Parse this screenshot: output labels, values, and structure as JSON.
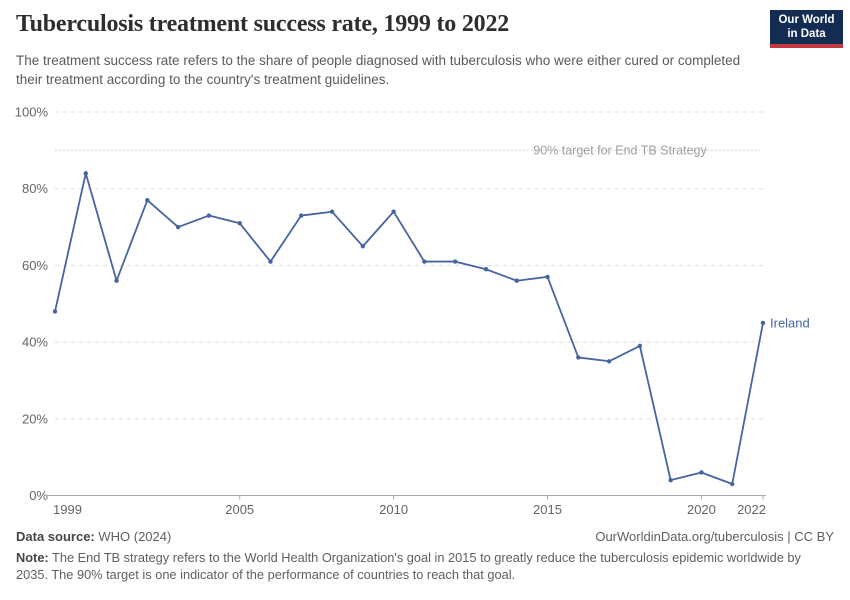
{
  "header": {
    "title": "Tuberculosis treatment success rate, 1999 to 2022",
    "subtitle": "The treatment success rate refers to the share of people diagnosed with tuberculosis who were either cured or completed their treatment according to the country's treatment guidelines.",
    "logo": {
      "line1": "Our World",
      "line2": "in Data"
    }
  },
  "chart_data": {
    "type": "line",
    "title": "Tuberculosis treatment success rate, 1999 to 2022",
    "xlabel": "",
    "ylabel": "",
    "xlim": [
      1999,
      2022
    ],
    "ylim": [
      0,
      100
    ],
    "grid": true,
    "x": [
      1999,
      2000,
      2001,
      2002,
      2003,
      2004,
      2005,
      2006,
      2007,
      2008,
      2009,
      2010,
      2011,
      2012,
      2013,
      2014,
      2015,
      2016,
      2017,
      2018,
      2019,
      2020,
      2021,
      2022
    ],
    "series": [
      {
        "name": "Ireland",
        "color": "#4665a0",
        "values": [
          48,
          84,
          56,
          77,
          70,
          73,
          71,
          61,
          73,
          74,
          65,
          74,
          61,
          61,
          59,
          56,
          57,
          36,
          35,
          39,
          4,
          6,
          3,
          45
        ]
      }
    ],
    "x_ticks": [
      1999,
      2005,
      2010,
      2015,
      2020,
      2022
    ],
    "y_ticks": [
      0,
      20,
      40,
      60,
      80,
      100
    ],
    "y_tick_suffix": "%",
    "target_line": {
      "value": 90,
      "label": "90% target for End TB Strategy"
    },
    "legend_position": "end-of-line"
  },
  "colors": {
    "line": "#4665a0",
    "grid": "#dedede",
    "axis": "#ababab",
    "axis_text": "#656565",
    "target": "#cccccc",
    "target_text": "#9e9e9e",
    "logo_bg": "#132c52",
    "logo_red": "#c2383f"
  },
  "footer": {
    "datasource_label": "Data source:",
    "datasource_value": " WHO (2024)",
    "rights": "OurWorldinData.org/tuberculosis | CC BY",
    "note_label": "Note:",
    "note_value": " The End TB strategy refers to the World Health Organization's goal in 2015 to greatly reduce the tuberculosis epidemic worldwide by 2035. The 90% target is one indicator of the performance of countries to reach that goal."
  }
}
